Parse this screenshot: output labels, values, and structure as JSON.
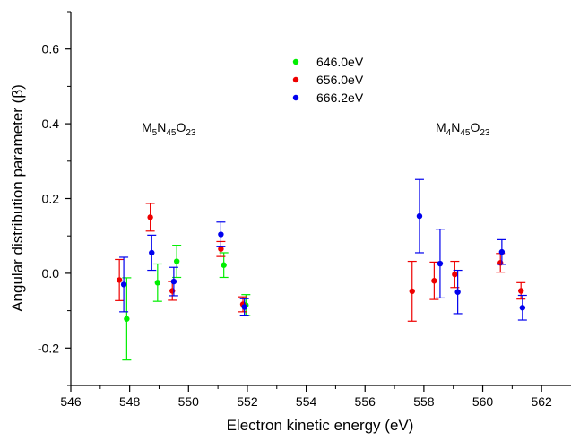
{
  "chart_data": {
    "type": "scatter",
    "title": "",
    "xlabel": "Electron kinetic energy (eV)",
    "ylabel": "Angular distribution parameter (β)",
    "xlim": [
      546,
      563
    ],
    "ylim": [
      -0.3,
      0.7
    ],
    "x_ticks": [
      546,
      548,
      550,
      552,
      554,
      556,
      558,
      560,
      562
    ],
    "y_ticks": [
      -0.2,
      0.0,
      0.2,
      0.4,
      0.6
    ],
    "y_tick_labels": [
      "-0.2",
      "0.0",
      "0.2",
      "0.4",
      "0.6"
    ],
    "grid": false,
    "legend_position": "top-center",
    "error_bars": true,
    "series": [
      {
        "name": "646.0eV",
        "color": "#00ee00",
        "points": [
          {
            "x": 547.9,
            "y": -0.122,
            "err": 0.11
          },
          {
            "x": 548.95,
            "y": -0.025,
            "err": 0.05
          },
          {
            "x": 549.6,
            "y": 0.032,
            "err": 0.043
          },
          {
            "x": 551.2,
            "y": 0.022,
            "err": 0.033
          },
          {
            "x": 551.95,
            "y": -0.085,
            "err": 0.028
          }
        ]
      },
      {
        "name": "656.0eV",
        "color": "#ee0000",
        "points": [
          {
            "x": 547.65,
            "y": -0.018,
            "err": 0.055
          },
          {
            "x": 548.7,
            "y": 0.15,
            "err": 0.037
          },
          {
            "x": 549.45,
            "y": -0.047,
            "err": 0.025
          },
          {
            "x": 551.1,
            "y": 0.065,
            "err": 0.02
          },
          {
            "x": 551.85,
            "y": -0.083,
            "err": 0.02
          },
          {
            "x": 557.6,
            "y": -0.048,
            "err": 0.08
          },
          {
            "x": 558.35,
            "y": -0.02,
            "err": 0.05
          },
          {
            "x": 559.05,
            "y": -0.003,
            "err": 0.035
          },
          {
            "x": 560.6,
            "y": 0.028,
            "err": 0.025
          },
          {
            "x": 561.3,
            "y": -0.047,
            "err": 0.022
          }
        ]
      },
      {
        "name": "666.2eV",
        "color": "#0000ee",
        "points": [
          {
            "x": 547.8,
            "y": -0.03,
            "err": 0.073
          },
          {
            "x": 548.75,
            "y": 0.055,
            "err": 0.047
          },
          {
            "x": 549.5,
            "y": -0.022,
            "err": 0.038
          },
          {
            "x": 551.1,
            "y": 0.104,
            "err": 0.033
          },
          {
            "x": 551.9,
            "y": -0.09,
            "err": 0.022
          },
          {
            "x": 557.85,
            "y": 0.153,
            "err": 0.098
          },
          {
            "x": 558.55,
            "y": 0.026,
            "err": 0.092
          },
          {
            "x": 559.15,
            "y": -0.05,
            "err": 0.058
          },
          {
            "x": 560.65,
            "y": 0.057,
            "err": 0.033
          },
          {
            "x": 561.35,
            "y": -0.092,
            "err": 0.033
          }
        ]
      }
    ],
    "annotations": [
      {
        "key": "m5",
        "parts": [
          {
            "t": "M",
            "s": "base"
          },
          {
            "t": "5",
            "s": "sub"
          },
          {
            "t": "N",
            "s": "base"
          },
          {
            "t": "45",
            "s": "sub"
          },
          {
            "t": "O",
            "s": "base"
          },
          {
            "t": "23",
            "s": "sub"
          }
        ]
      },
      {
        "key": "m4",
        "parts": [
          {
            "t": "M",
            "s": "base"
          },
          {
            "t": "4",
            "s": "sub"
          },
          {
            "t": "N",
            "s": "base"
          },
          {
            "t": "45",
            "s": "sub"
          },
          {
            "t": "O",
            "s": "base"
          },
          {
            "t": "23",
            "s": "sub"
          }
        ]
      }
    ]
  }
}
